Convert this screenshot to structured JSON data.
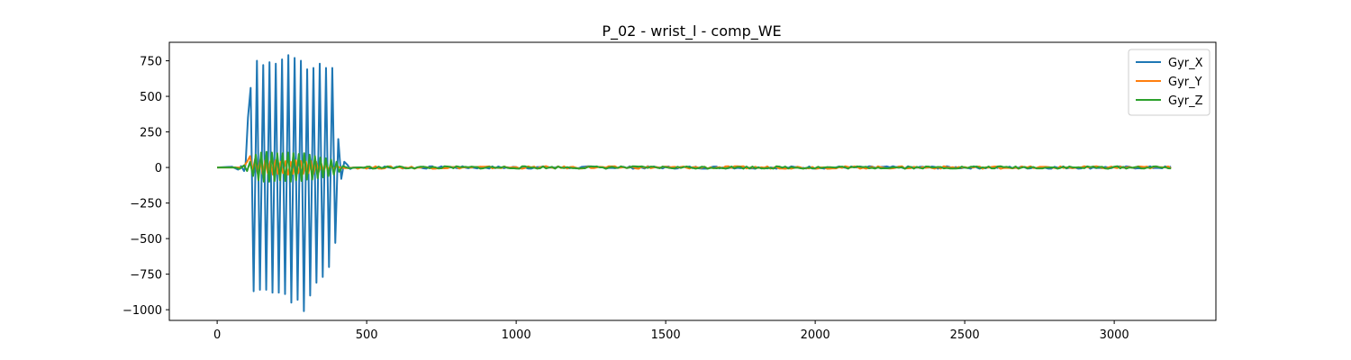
{
  "chart_data": {
    "type": "line",
    "title": "P_02 - wrist_l - comp_WE",
    "xlabel": "",
    "ylabel": "",
    "xlim": [
      -160,
      3340
    ],
    "ylim": [
      -1075,
      880
    ],
    "grid": false,
    "legend_position": "top-right",
    "x_ticks": [
      0,
      500,
      1000,
      1500,
      2000,
      2500,
      3000
    ],
    "x_tick_labels": [
      "0",
      "500",
      "1000",
      "1500",
      "2000",
      "2500",
      "3000"
    ],
    "y_ticks": [
      750,
      500,
      250,
      0,
      -250,
      -500,
      -750,
      -1000
    ],
    "y_tick_labels": [
      "750",
      "500",
      "250",
      "0",
      "−250",
      "−500",
      "−750",
      "−1000"
    ],
    "series": [
      {
        "name": "Gyr_X",
        "color": "#1f77b4",
        "x": [
          0,
          50,
          70,
          80,
          90,
          95,
          103,
          112,
          122,
          133,
          143,
          154,
          164,
          175,
          185,
          196,
          206,
          217,
          227,
          238,
          248,
          259,
          269,
          280,
          290,
          301,
          311,
          322,
          332,
          343,
          353,
          364,
          374,
          385,
          395,
          405,
          415,
          425,
          435,
          445,
          455,
          480
        ],
        "y": [
          0,
          5,
          -15,
          10,
          -25,
          20,
          350,
          560,
          -870,
          750,
          -860,
          720,
          -860,
          740,
          -880,
          730,
          -880,
          760,
          -890,
          790,
          -950,
          770,
          -930,
          750,
          -1010,
          690,
          -900,
          700,
          -810,
          730,
          -770,
          700,
          -700,
          700,
          -530,
          200,
          -80,
          40,
          20,
          -10,
          0,
          0
        ]
      },
      {
        "name": "Gyr_Y",
        "color": "#ff7f0e",
        "x": [
          0,
          80,
          90,
          100,
          110,
          118,
          127,
          135,
          144,
          152,
          161,
          169,
          178,
          186,
          195,
          203,
          212,
          220,
          229,
          237,
          246,
          254,
          263,
          271,
          280,
          288,
          297,
          305,
          314,
          322,
          331,
          339,
          348,
          356,
          365,
          373,
          382,
          390,
          399,
          410,
          430,
          460
        ],
        "y": [
          0,
          0,
          10,
          40,
          80,
          -30,
          60,
          -40,
          55,
          -45,
          50,
          -40,
          45,
          -50,
          50,
          -45,
          40,
          -40,
          45,
          -50,
          40,
          -45,
          50,
          -40,
          45,
          -45,
          40,
          -40,
          45,
          -45,
          40,
          -35,
          30,
          -30,
          25,
          -20,
          20,
          -15,
          10,
          0,
          -5,
          0
        ]
      },
      {
        "name": "Gyr_Z",
        "color": "#2ca02c",
        "x": [
          0,
          60,
          75,
          90,
          100,
          110,
          120,
          129,
          138,
          147,
          156,
          165,
          174,
          183,
          192,
          201,
          210,
          219,
          228,
          237,
          246,
          255,
          264,
          273,
          282,
          291,
          300,
          309,
          318,
          327,
          336,
          345,
          354,
          363,
          372,
          381,
          390,
          399,
          408,
          420,
          440,
          470
        ],
        "y": [
          0,
          0,
          -10,
          15,
          -25,
          40,
          -60,
          90,
          -90,
          105,
          -100,
          110,
          -100,
          105,
          -95,
          100,
          -90,
          100,
          -95,
          105,
          -100,
          100,
          -90,
          95,
          -95,
          100,
          -85,
          90,
          -85,
          80,
          -75,
          70,
          -70,
          65,
          -60,
          55,
          -50,
          40,
          -30,
          10,
          -5,
          0
        ]
      }
    ]
  }
}
